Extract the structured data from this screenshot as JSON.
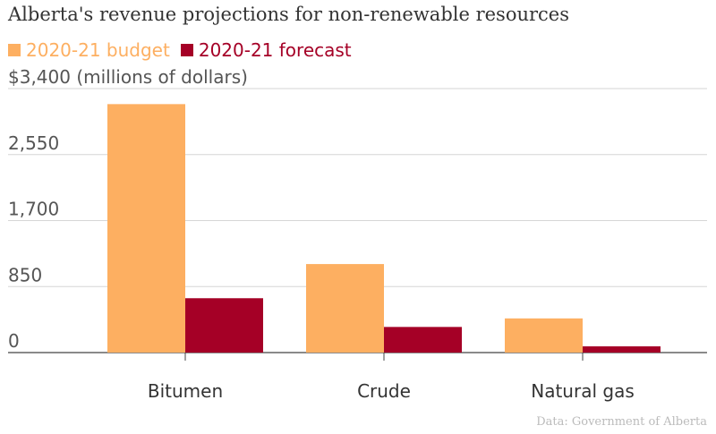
{
  "chart_data": {
    "type": "bar",
    "title": "Alberta's revenue projections for non-renewable resources",
    "categories": [
      "Bitumen",
      "Crude",
      "Natural gas"
    ],
    "series": [
      {
        "name": "2020-21 budget",
        "color": "#fdaf61",
        "values": [
          3200,
          1140,
          440
        ]
      },
      {
        "name": "2020-21 forecast",
        "color": "#a50026",
        "values": [
          700,
          330,
          80
        ]
      }
    ],
    "ylim": [
      0,
      3400
    ],
    "yticks": [
      0,
      850,
      1700,
      2550,
      3400
    ],
    "ytick_labels": [
      "0",
      "850",
      "1,700",
      "2,550",
      "$3,400 (millions of dollars)"
    ],
    "grid": true,
    "legend": "top-left",
    "source": "Data: Government of Alberta"
  }
}
